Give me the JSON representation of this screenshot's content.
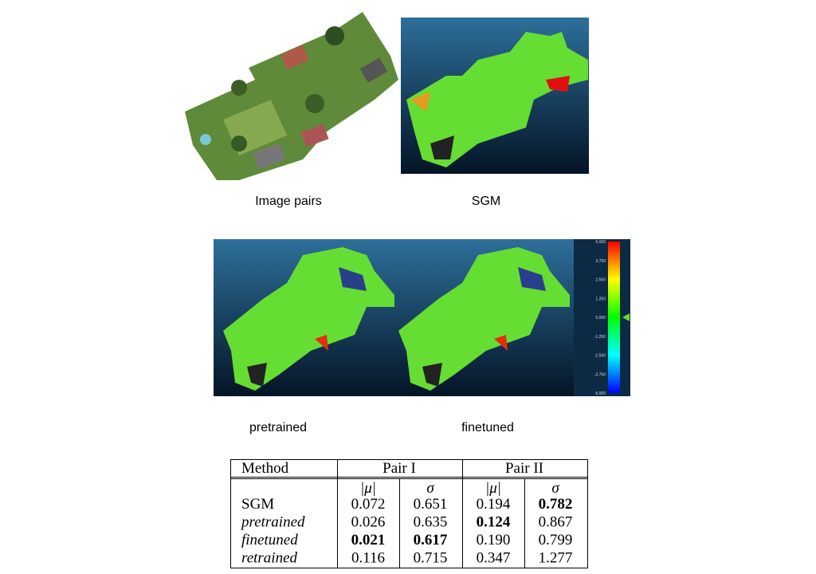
{
  "captions": {
    "image_pairs": "Image pairs",
    "sgm": "SGM",
    "pretrained": "pretrained",
    "finetuned": "finetuned"
  },
  "colorbar": {
    "labels": [
      "5.000",
      "3.750",
      "2.500",
      "1.250",
      "0.000",
      "-1.250",
      "-2.500",
      "-3.750",
      "-5.000"
    ]
  },
  "table": {
    "header": [
      "Method",
      "Pair I",
      "Pair II"
    ],
    "subheader": [
      "|μ|",
      "σ",
      "|μ|",
      "σ"
    ],
    "rows": [
      {
        "method": "SGM",
        "italic": false,
        "values": [
          "0.072",
          "0.651",
          "0.194",
          "0.782"
        ],
        "bold": [
          false,
          false,
          false,
          true
        ]
      },
      {
        "method": "pretrained",
        "italic": true,
        "values": [
          "0.026",
          "0.635",
          "0.124",
          "0.867"
        ],
        "bold": [
          false,
          false,
          true,
          false
        ]
      },
      {
        "method": "finetuned",
        "italic": true,
        "values": [
          "0.021",
          "0.617",
          "0.190",
          "0.799"
        ],
        "bold": [
          true,
          true,
          false,
          false
        ]
      },
      {
        "method": "retrained",
        "italic": true,
        "values": [
          "0.116",
          "0.715",
          "0.347",
          "1.277"
        ],
        "bold": [
          false,
          false,
          false,
          false
        ]
      }
    ]
  }
}
